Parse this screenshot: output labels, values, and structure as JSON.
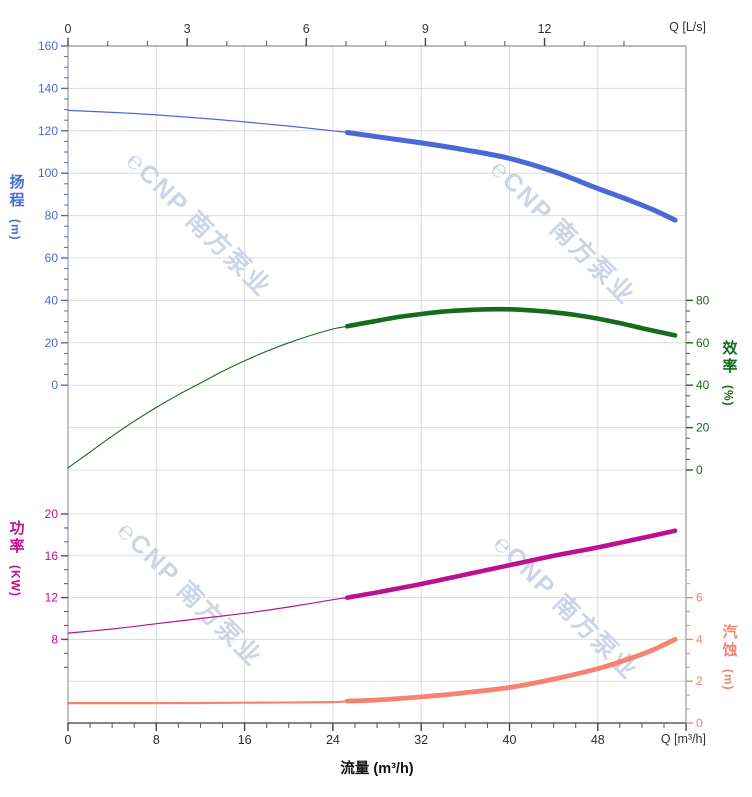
{
  "chart_data": {
    "type": "line",
    "description": "Pump performance curves: head, efficiency, shaft power and NPSH versus flow rate",
    "x_bottom": {
      "label": "流量 (m³/h)",
      "corner_label": "Q [m³/h]",
      "majors": [
        0,
        8,
        16,
        24,
        32,
        40,
        48,
        56
      ],
      "labeled_majors": [
        0,
        8,
        16,
        24,
        32,
        40,
        48
      ],
      "minor_step": 2,
      "max": 56
    },
    "x_top": {
      "corner_label": "Q [L/s]",
      "majors": [
        0,
        3,
        6,
        9,
        12
      ],
      "minor_step": 1,
      "max": 15.5
    },
    "axes": {
      "head": {
        "title": "扬程",
        "unit": "(m)",
        "color": "#4a69d9",
        "majors": [
          160,
          140,
          120,
          100,
          80,
          60,
          40,
          20,
          0
        ],
        "range": [
          0,
          160
        ]
      },
      "eff": {
        "title": "效率",
        "unit": "(%)",
        "color": "#156c1a",
        "majors": [
          80,
          60,
          40,
          20,
          0
        ],
        "range": [
          0,
          80
        ]
      },
      "pow": {
        "title": "功率",
        "unit": "(KW)",
        "color": "#bc1090",
        "majors": [
          20,
          16,
          12,
          8
        ],
        "range": [
          8,
          20
        ]
      },
      "npsh": {
        "title": "汽蚀",
        "unit": "(m)",
        "color": "#f5836f",
        "majors": [
          6,
          4,
          2,
          0
        ],
        "range": [
          0,
          8
        ]
      }
    },
    "series": [
      {
        "key": "head",
        "axis": "head",
        "bold_from": 25.3,
        "points": [
          [
            0,
            129.6
          ],
          [
            4,
            128.7
          ],
          [
            8,
            127.5
          ],
          [
            12,
            126.0
          ],
          [
            16,
            124.2
          ],
          [
            20,
            122.2
          ],
          [
            24,
            120.0
          ],
          [
            25.3,
            119.2
          ],
          [
            28,
            117.2
          ],
          [
            32,
            114.3
          ],
          [
            36,
            111.0
          ],
          [
            40,
            107.0
          ],
          [
            44,
            100.8
          ],
          [
            48,
            92.8
          ],
          [
            51,
            87.0
          ],
          [
            53,
            82.8
          ],
          [
            55,
            77.9
          ]
        ]
      },
      {
        "key": "eff",
        "axis": "eff",
        "bold_from": 25.3,
        "points": [
          [
            0,
            1
          ],
          [
            2,
            8.5
          ],
          [
            4,
            16
          ],
          [
            6,
            23
          ],
          [
            8,
            29.5
          ],
          [
            10,
            35.5
          ],
          [
            12,
            41
          ],
          [
            14,
            46.5
          ],
          [
            16,
            51.5
          ],
          [
            18,
            56
          ],
          [
            20,
            60
          ],
          [
            22,
            63.5
          ],
          [
            24,
            66.5
          ],
          [
            25.3,
            67.8
          ],
          [
            28,
            70.4
          ],
          [
            30,
            72.2
          ],
          [
            32,
            73.6
          ],
          [
            34,
            74.7
          ],
          [
            36,
            75.4
          ],
          [
            38,
            75.8
          ],
          [
            40,
            75.8
          ],
          [
            42,
            75.3
          ],
          [
            44,
            74.4
          ],
          [
            46,
            73.1
          ],
          [
            48,
            71.4
          ],
          [
            50,
            69.3
          ],
          [
            52,
            66.9
          ],
          [
            54,
            64.6
          ],
          [
            55,
            63.5
          ]
        ]
      },
      {
        "key": "pow",
        "axis": "pow",
        "bold_from": 25.3,
        "points": [
          [
            0,
            8.6
          ],
          [
            4,
            9.0
          ],
          [
            8,
            9.5
          ],
          [
            12,
            10.0
          ],
          [
            16,
            10.5
          ],
          [
            20,
            11.1
          ],
          [
            24,
            11.8
          ],
          [
            25.3,
            12.0
          ],
          [
            28,
            12.5
          ],
          [
            32,
            13.3
          ],
          [
            36,
            14.2
          ],
          [
            40,
            15.1
          ],
          [
            44,
            16.0
          ],
          [
            48,
            16.8
          ],
          [
            52,
            17.7
          ],
          [
            55,
            18.4
          ]
        ]
      },
      {
        "key": "npsh",
        "axis": "npsh",
        "bold_from": 25.3,
        "points": [
          [
            0,
            0.95
          ],
          [
            8,
            0.95
          ],
          [
            16,
            0.97
          ],
          [
            24,
            1.0
          ],
          [
            25.3,
            1.05
          ],
          [
            28,
            1.1
          ],
          [
            32,
            1.25
          ],
          [
            36,
            1.45
          ],
          [
            40,
            1.7
          ],
          [
            44,
            2.1
          ],
          [
            48,
            2.6
          ],
          [
            51,
            3.1
          ],
          [
            53,
            3.5
          ],
          [
            55,
            4.0
          ]
        ]
      }
    ],
    "watermark": {
      "text": "℮CNP 南方泵业",
      "color": "#ccd4e5"
    },
    "grid": true,
    "legend": "none"
  }
}
